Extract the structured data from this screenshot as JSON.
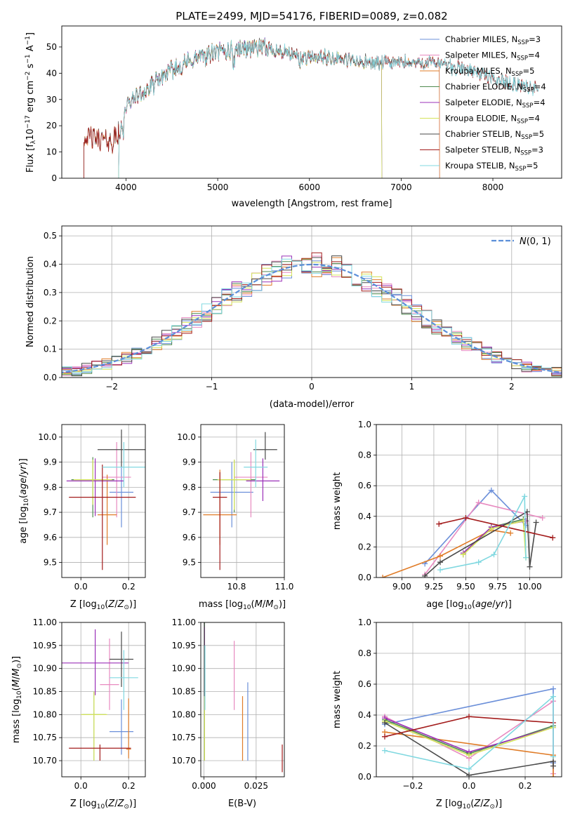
{
  "colors": [
    "#6b8fd9",
    "#e88ac0",
    "#e07c28",
    "#4f8a4f",
    "#9b30b8",
    "#d4e35a",
    "#4a4a4a",
    "#a31c1c",
    "#80d8e0"
  ],
  "chart_data": [
    {
      "id": "spectrum",
      "type": "line",
      "title": "PLATE=2499, MJD=54176, FIBERID=0089, z=0.082",
      "xlabel": "wavelength [Angstrom, rest frame]",
      "ylabel": "Flux [f_λ 10^-17 erg cm^-2 s^-1 A^-1]",
      "xlim": [
        3300,
        8750
      ],
      "ylim": [
        0,
        58
      ],
      "xticks": [
        4000,
        5000,
        6000,
        7000,
        8000
      ],
      "yticks": [
        0,
        10,
        20,
        30,
        40,
        50
      ],
      "legend_position": "top-right",
      "continuum": {
        "x": [
          3550,
          3700,
          3850,
          3920,
          4000,
          4100,
          4250,
          4400,
          4600,
          4800,
          5000,
          5200,
          5400,
          5600,
          5800,
          6000,
          6200,
          6400,
          6600,
          6800,
          7000,
          7200,
          7400,
          7600,
          7800,
          8000,
          8200,
          8400,
          8500
        ],
        "y": [
          16,
          15,
          14,
          17,
          27,
          31,
          34,
          39,
          43,
          46,
          48,
          49,
          50,
          49,
          47,
          46,
          46,
          45,
          44,
          44,
          44,
          44,
          44,
          42,
          41,
          38,
          36,
          35,
          33
        ]
      },
      "series": [
        {
          "name": "Chabrier MILES, N_SSP=3",
          "label_main": "Chabrier MILES, N",
          "label_sub": "SSP",
          "label_tail": "=3",
          "xmin": 3920,
          "xmax": 7420
        },
        {
          "name": "Salpeter MILES, N_SSP=4",
          "label_main": "Salpeter MILES, N",
          "label_sub": "SSP",
          "label_tail": "=4",
          "xmin": 3920,
          "xmax": 7420
        },
        {
          "name": "Kroupa MILES, N_SSP=5",
          "label_main": "Kroupa MILES, N",
          "label_sub": "SSP",
          "label_tail": "=5",
          "xmin": 3540,
          "xmax": 7420
        },
        {
          "name": "Chabrier ELODIE, N_SSP=4",
          "label_main": "Chabrier ELODIE, N",
          "label_sub": "SSP",
          "label_tail": "=4",
          "xmin": 3920,
          "xmax": 6790
        },
        {
          "name": "Salpeter ELODIE, N_SSP=4",
          "label_main": "Salpeter ELODIE, N",
          "label_sub": "SSP",
          "label_tail": "=4",
          "xmin": 3920,
          "xmax": 6790
        },
        {
          "name": "Kroupa ELODIE, N_SSP=4",
          "label_main": "Kroupa ELODIE, N",
          "label_sub": "SSP",
          "label_tail": "=4",
          "xmin": 3920,
          "xmax": 6790
        },
        {
          "name": "Chabrier STELIB, N_SSP=5",
          "label_main": "Chabrier STELIB, N",
          "label_sub": "SSP",
          "label_tail": "=5",
          "xmin": 3540,
          "xmax": 8500
        },
        {
          "name": "Salpeter STELIB, N_SSP=3",
          "label_main": "Salpeter STELIB, N",
          "label_sub": "SSP",
          "label_tail": "=3",
          "xmin": 3540,
          "xmax": 8500
        },
        {
          "name": "Kroupa STELIB, N_SSP=5",
          "label_main": "Kroupa STELIB, N",
          "label_sub": "SSP",
          "label_tail": "=5",
          "xmin": 3920,
          "xmax": 8500
        }
      ]
    },
    {
      "id": "residuals",
      "type": "line",
      "xlabel": "(data-model)/error",
      "ylabel": "Normed distribution",
      "xlim": [
        -2.5,
        2.5
      ],
      "ylim": [
        0,
        0.535
      ],
      "xticks": [
        -2,
        -1,
        0,
        1,
        2
      ],
      "xtick_labels": [
        "−2",
        "−1",
        "0",
        "1",
        "2"
      ],
      "yticks": [
        0.0,
        0.1,
        0.2,
        0.3,
        0.4,
        0.5
      ],
      "ytick_labels": [
        "0.0",
        "0.1",
        "0.2",
        "0.3",
        "0.4",
        "0.5"
      ],
      "grid": true,
      "gaussian": {
        "name": "N(0,1)",
        "mean": 0,
        "sigma": 1
      },
      "legend_position": "top-right",
      "bin_width": 0.1
    },
    {
      "id": "age-vs-Z",
      "type": "scatter",
      "xlabel": "Z [log10(Z/Z⊙)]",
      "ylabel": "age [log10(age/yr)]",
      "xlim": [
        -0.08,
        0.27
      ],
      "ylim": [
        9.44,
        10.05
      ],
      "xticks": [
        0.0,
        0.2
      ],
      "xtick_labels": [
        "0.0",
        "0.2"
      ],
      "yticks": [
        9.5,
        9.6,
        9.7,
        9.8,
        9.9,
        10.0
      ],
      "ytick_labels": [
        "9.5",
        "9.6",
        "9.7",
        "9.8",
        "9.9",
        "10.0"
      ],
      "grid": true,
      "points": [
        {
          "x": 0.17,
          "xerr": 0.05,
          "y": 9.78,
          "yerr": [
            0.14,
            0.1
          ]
        },
        {
          "x": 0.15,
          "xerr": 0.06,
          "y": 9.84,
          "yerr": [
            0.16,
            0.14
          ]
        },
        {
          "x": 0.11,
          "xerr": 0.04,
          "y": 9.69,
          "yerr": [
            0.12,
            0.16
          ]
        },
        {
          "x": 0.05,
          "xerr": 0.09,
          "y": 9.83,
          "yerr": [
            0.15,
            0.09
          ]
        },
        {
          "x": 0.06,
          "xerr": 0.12,
          "y": 9.825,
          "yerr": [
            0.14,
            0.09
          ]
        },
        {
          "x": 0.05,
          "xerr": 0.08,
          "y": 9.83,
          "yerr": [
            0.1,
            0.08
          ]
        },
        {
          "x": 0.17,
          "xerr": 0.1,
          "y": 9.95,
          "yerr": [
            0.07,
            0.08
          ]
        },
        {
          "x": 0.09,
          "xerr": 0.14,
          "y": 9.76,
          "yerr": [
            0.29,
            0.13
          ]
        },
        {
          "x": 0.18,
          "xerr": 0.09,
          "y": 9.88,
          "yerr": [
            0.08,
            0.1
          ]
        }
      ]
    },
    {
      "id": "age-vs-mass",
      "type": "scatter",
      "xlabel": "mass [log10(M/M⊙)]",
      "ylabel": "",
      "xlim": [
        10.65,
        11.0
      ],
      "ylim": [
        9.44,
        10.05
      ],
      "xticks": [
        10.8,
        11.0
      ],
      "xtick_labels": [
        "10.8",
        "11.0"
      ],
      "yticks": [
        9.5,
        9.6,
        9.7,
        9.8,
        9.9,
        10.0
      ],
      "ytick_labels": [
        "9.5",
        "9.6",
        "9.7",
        "9.8",
        "9.9",
        "10.0"
      ],
      "grid": true,
      "points": [
        {
          "x": 10.78,
          "xerr": 0.09,
          "y": 9.78,
          "yerr": [
            0.14,
            0.12
          ]
        },
        {
          "x": 10.86,
          "xerr": 0.07,
          "y": 9.84,
          "yerr": [
            0.16,
            0.1
          ]
        },
        {
          "x": 10.73,
          "xerr": 0.07,
          "y": 9.69,
          "yerr": [
            0.12,
            0.18
          ]
        },
        {
          "x": 10.79,
          "xerr": 0.09,
          "y": 9.83,
          "yerr": [
            0.13,
            0.08
          ]
        },
        {
          "x": 10.91,
          "xerr": 0.07,
          "y": 9.825,
          "yerr": [
            0.08,
            0.09
          ]
        },
        {
          "x": 10.79,
          "xerr": 0.07,
          "y": 9.83,
          "yerr": [
            0.12,
            0.08
          ]
        },
        {
          "x": 10.92,
          "xerr": 0.05,
          "y": 9.95,
          "yerr": [
            0.04,
            0.07
          ]
        },
        {
          "x": 10.73,
          "xerr": 0.03,
          "y": 9.76,
          "yerr": [
            0.29,
            0.1
          ]
        },
        {
          "x": 10.88,
          "xerr": 0.05,
          "y": 9.88,
          "yerr": [
            0.08,
            0.11
          ]
        }
      ]
    },
    {
      "id": "mw-vs-age",
      "type": "line",
      "xlabel": "age [log10(age/yr)]",
      "ylabel": "mass weight",
      "xlim": [
        8.8,
        10.25
      ],
      "ylim": [
        0,
        1.0
      ],
      "xticks": [
        9.0,
        9.25,
        9.5,
        9.75,
        10.0
      ],
      "xtick_labels": [
        "9.00",
        "9.25",
        "9.50",
        "9.75",
        "10.00"
      ],
      "yticks": [
        0.0,
        0.2,
        0.4,
        0.6,
        0.8,
        1.0
      ],
      "ytick_labels": [
        "0.0",
        "0.2",
        "0.4",
        "0.6",
        "0.8",
        "1.0"
      ],
      "grid": true,
      "series": [
        {
          "x": [
            9.18,
            9.7,
            9.97
          ],
          "y": [
            0.09,
            0.57,
            0.34
          ]
        },
        {
          "x": [
            9.18,
            9.6,
            10.1
          ],
          "y": [
            0.02,
            0.49,
            0.39
          ]
        },
        {
          "x": [
            8.85,
            9.3,
            9.7,
            9.85
          ],
          "y": [
            0.0,
            0.14,
            0.31,
            0.29
          ]
        },
        {
          "x": [
            9.48,
            9.7,
            9.95
          ],
          "y": [
            0.15,
            0.33,
            0.38
          ]
        },
        {
          "x": [
            9.48,
            9.7,
            9.97
          ],
          "y": [
            0.16,
            0.33,
            0.37
          ]
        },
        {
          "x": [
            9.48,
            9.7,
            9.95,
            9.97
          ],
          "y": [
            0.15,
            0.32,
            0.37,
            0.13
          ]
        },
        {
          "x": [
            9.18,
            9.3,
            9.98,
            10.0,
            10.05
          ],
          "y": [
            0.01,
            0.1,
            0.43,
            0.07,
            0.36
          ]
        },
        {
          "x": [
            9.29,
            9.5,
            10.18
          ],
          "y": [
            0.35,
            0.39,
            0.26
          ]
        },
        {
          "x": [
            9.3,
            9.6,
            9.72,
            9.96,
            9.97
          ],
          "y": [
            0.05,
            0.1,
            0.15,
            0.53,
            0.13
          ]
        }
      ]
    },
    {
      "id": "mass-vs-Z",
      "type": "scatter",
      "xlabel": "Z [log10(Z/Z⊙)]",
      "ylabel": "mass [log10(M/M⊙)]",
      "xlim": [
        -0.08,
        0.27
      ],
      "ylim": [
        10.665,
        11.0
      ],
      "xticks": [
        0.0,
        0.2
      ],
      "xtick_labels": [
        "0.0",
        "0.2"
      ],
      "yticks": [
        10.7,
        10.75,
        10.8,
        10.85,
        10.9,
        10.95,
        11.0
      ],
      "ytick_labels": [
        "10.70",
        "10.75",
        "10.80",
        "10.85",
        "10.90",
        "10.95",
        "11.00"
      ],
      "grid": true,
      "points": [
        {
          "x": 0.17,
          "xerr": 0.05,
          "y": 10.763,
          "yerr": [
            0.05,
            0.07
          ]
        },
        {
          "x": 0.12,
          "xerr": 0.04,
          "y": 10.865,
          "yerr": [
            0.055,
            0.1
          ]
        },
        {
          "x": 0.2,
          "xerr": 0.01,
          "y": 10.725,
          "yerr": [
            0.02,
            0.11
          ]
        },
        {
          "x": 0.055,
          "xerr": 0.05,
          "y": 10.8,
          "yerr": [
            0.1,
            0.05
          ]
        },
        {
          "x": 0.06,
          "xerr": 0.14,
          "y": 10.912,
          "yerr": [
            0.07,
            0.073
          ]
        },
        {
          "x": 0.055,
          "xerr": 0.055,
          "y": 10.8,
          "yerr": [
            0.1,
            0.05
          ]
        },
        {
          "x": 0.17,
          "xerr": 0.05,
          "y": 10.92,
          "yerr": [
            0.06,
            0.06
          ]
        },
        {
          "x": 0.08,
          "xerr": 0.13,
          "y": 10.727,
          "yerr": [
            0.027,
            0.008
          ]
        },
        {
          "x": 0.18,
          "xerr": 0.06,
          "y": 10.88,
          "yerr": [
            0.07,
            0.06
          ]
        }
      ]
    },
    {
      "id": "mass-vs-EBV",
      "type": "scatter",
      "xlabel": "E(B-V)",
      "ylabel": "",
      "xlim": [
        -0.0015,
        0.0385
      ],
      "ylim": [
        10.665,
        11.0
      ],
      "xticks": [
        0.0,
        0.025
      ],
      "xtick_labels": [
        "0.000",
        "0.025"
      ],
      "yticks": [
        10.7,
        10.75,
        10.8,
        10.85,
        10.9,
        10.95,
        11.0
      ],
      "ytick_labels": [
        "10.70",
        "10.75",
        "10.80",
        "10.85",
        "10.90",
        "10.95",
        "11.00"
      ],
      "grid": true,
      "points": [
        {
          "x": 0.021,
          "xerr": 0,
          "y": 10.785,
          "yerr": [
            0.085,
            0.085
          ]
        },
        {
          "x": 0.0145,
          "xerr": 0,
          "y": 10.885,
          "yerr": [
            0.075,
            0.075
          ]
        },
        {
          "x": 0.0185,
          "xerr": 0,
          "y": 10.77,
          "yerr": [
            0.07,
            0.07
          ]
        },
        {
          "x": 0.0003,
          "xerr": 0,
          "y": 10.85,
          "yerr": [
            0.15,
            0.15
          ]
        },
        {
          "x": 0.0003,
          "xerr": 0,
          "y": 10.9,
          "yerr": [
            0.09,
            0.09
          ]
        },
        {
          "x": 0.0003,
          "xerr": 0,
          "y": 10.8,
          "yerr": [
            0.1,
            0.1
          ]
        },
        {
          "x": 0.0002,
          "xerr": 0,
          "y": 10.92,
          "yerr": [
            0.08,
            0.08
          ]
        },
        {
          "x": 0.0375,
          "xerr": 0,
          "y": 10.705,
          "yerr": [
            0.03,
            0.03
          ]
        },
        {
          "x": 0.0005,
          "xerr": 0,
          "y": 10.88,
          "yerr": [
            0.07,
            0.07
          ]
        }
      ]
    },
    {
      "id": "mw-vs-Z",
      "type": "line",
      "xlabel": "Z [log10(Z/Z⊙)]",
      "ylabel": "mass weight",
      "xlim": [
        -0.33,
        0.33
      ],
      "ylim": [
        0,
        1.0
      ],
      "xticks": [
        -0.2,
        0.0,
        0.2
      ],
      "xtick_labels": [
        "−0.2",
        "0.0",
        "0.2"
      ],
      "yticks": [
        0.0,
        0.2,
        0.4,
        0.6,
        0.8,
        1.0
      ],
      "ytick_labels": [
        "0.0",
        "0.2",
        "0.4",
        "0.6",
        "0.8",
        "1.0"
      ],
      "grid": true,
      "series": [
        {
          "x": [
            -0.3,
            0.3,
            0.3
          ],
          "y": [
            0.34,
            0.57,
            0.09
          ]
        },
        {
          "x": [
            -0.3,
            0.0,
            0.3,
            0.3
          ],
          "y": [
            0.39,
            0.12,
            0.49,
            0.02
          ]
        },
        {
          "x": [
            -0.3,
            0.3,
            0.3
          ],
          "y": [
            0.29,
            0.14,
            0.0
          ]
        },
        {
          "x": [
            -0.3,
            0.0,
            0.3
          ],
          "y": [
            0.37,
            0.15,
            0.33
          ]
        },
        {
          "x": [
            -0.3,
            0.0,
            0.3
          ],
          "y": [
            0.38,
            0.16,
            0.32
          ]
        },
        {
          "x": [
            -0.3,
            0.0,
            0.3
          ],
          "y": [
            0.36,
            0.14,
            0.32
          ]
        },
        {
          "x": [
            -0.3,
            0.0,
            0.3,
            0.3
          ],
          "y": [
            0.35,
            0.01,
            0.1,
            0.07
          ]
        },
        {
          "x": [
            -0.3,
            0.0,
            0.3
          ],
          "y": [
            0.26,
            0.39,
            0.35
          ]
        },
        {
          "x": [
            -0.3,
            0.0,
            0.3,
            0.3
          ],
          "y": [
            0.17,
            0.05,
            0.52,
            0.13
          ]
        }
      ]
    }
  ]
}
